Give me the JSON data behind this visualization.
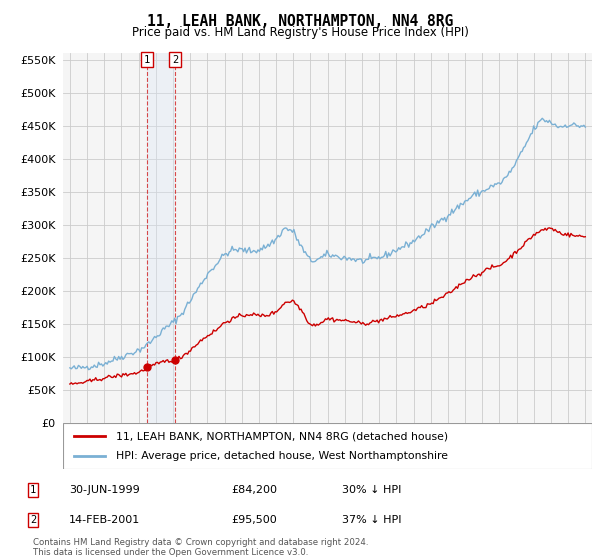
{
  "title": "11, LEAH BANK, NORTHAMPTON, NN4 8RG",
  "subtitle": "Price paid vs. HM Land Registry's House Price Index (HPI)",
  "legend_line1": "11, LEAH BANK, NORTHAMPTON, NN4 8RG (detached house)",
  "legend_line2": "HPI: Average price, detached house, West Northamptonshire",
  "transaction1_label": "1",
  "transaction1_date": "30-JUN-1999",
  "transaction1_price": "£84,200",
  "transaction1_hpi": "30% ↓ HPI",
  "transaction2_label": "2",
  "transaction2_date": "14-FEB-2001",
  "transaction2_price": "£95,500",
  "transaction2_hpi": "37% ↓ HPI",
  "footer": "Contains HM Land Registry data © Crown copyright and database right 2024.\nThis data is licensed under the Open Government Licence v3.0.",
  "property_color": "#cc0000",
  "hpi_color": "#7ab0d4",
  "transaction_vline_color": "#cc0000",
  "transaction_fill_color": "#dce8f5",
  "ylim": [
    0,
    560000
  ],
  "yticks": [
    0,
    50000,
    100000,
    150000,
    200000,
    250000,
    300000,
    350000,
    400000,
    450000,
    500000,
    550000
  ],
  "transaction1_x": 1999.5,
  "transaction2_x": 2001.12,
  "xmin": 1994.6,
  "xmax": 2025.4,
  "background_color": "#f5f5f5"
}
